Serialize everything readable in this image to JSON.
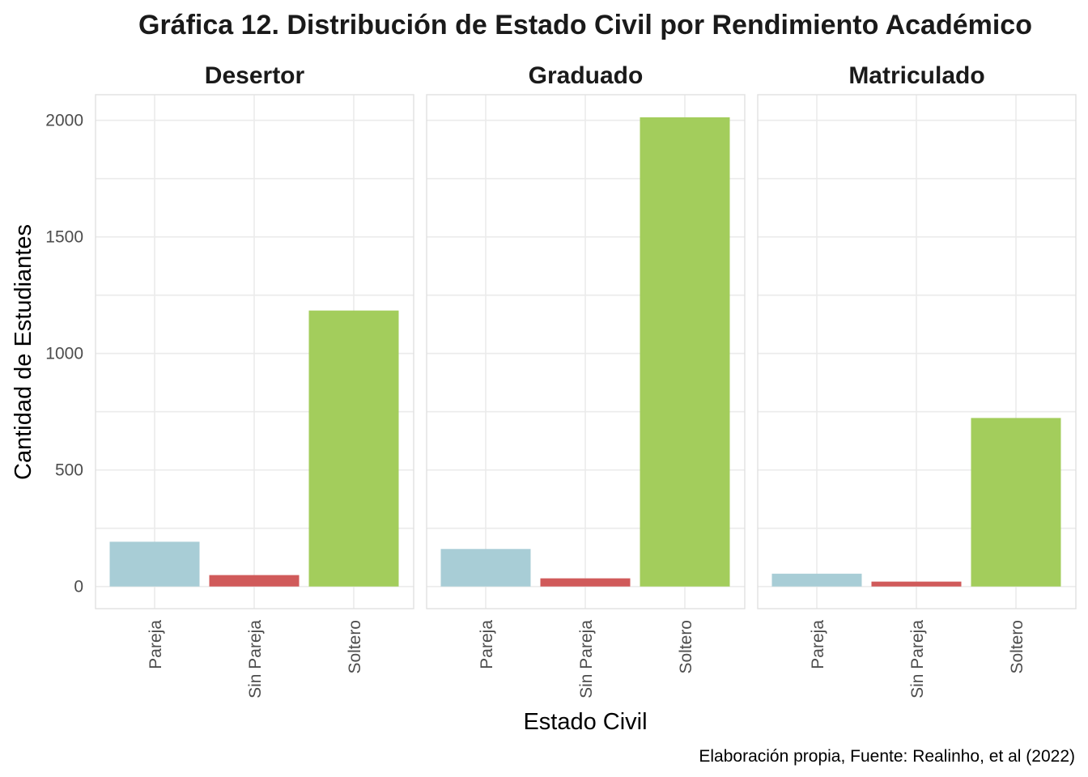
{
  "chart_data": {
    "type": "bar",
    "title": "Gráfica 12. Distribución de Estado Civil por Rendimiento Académico",
    "xlabel": "Estado Civil",
    "ylabel": "Cantidad de Estudiantes",
    "caption": "Elaboración propia, Fuente: Realinho, et al (2022)",
    "categories": [
      "Pareja",
      "Sin Pareja",
      "Soltero"
    ],
    "colors": [
      "#a8cdd6",
      "#d05a5a",
      "#a3cd5c"
    ],
    "ylim": [
      -95,
      2110
    ],
    "yticks": [
      0,
      500,
      1000,
      1500,
      2000
    ],
    "grid": true,
    "legend": "none",
    "facets": [
      {
        "name": "Desertor",
        "values": [
          192,
          49,
          1184
        ]
      },
      {
        "name": "Graduado",
        "values": [
          161,
          35,
          2013
        ]
      },
      {
        "name": "Matriculado",
        "values": [
          55,
          21,
          723
        ]
      }
    ]
  }
}
